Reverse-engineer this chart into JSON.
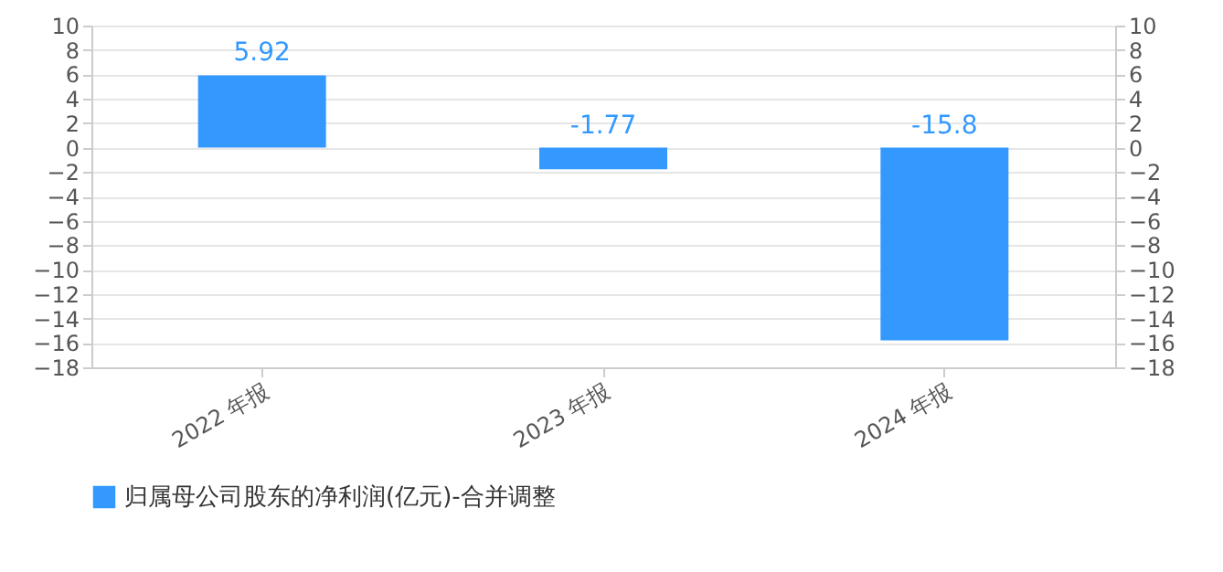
{
  "chart_data": {
    "type": "bar",
    "categories": [
      "2022 年报",
      "2023 年报",
      "2024 年报"
    ],
    "series": [
      {
        "name": "归属母公司股东的净利润(亿元)-合并调整",
        "color": "#3399ff",
        "values": [
          5.92,
          -1.77,
          -15.8
        ]
      }
    ],
    "ylim": [
      -18,
      10
    ],
    "yticks": [
      -18,
      -16,
      -14,
      -12,
      -10,
      -8,
      -6,
      -4,
      -2,
      0,
      2,
      4,
      6,
      8,
      10
    ],
    "y2lim": [
      -18,
      10
    ],
    "y2ticks": [
      -18,
      -16,
      -14,
      -12,
      -10,
      -8,
      -6,
      -4,
      -2,
      0,
      2,
      4,
      6,
      8,
      10
    ],
    "grid": "y",
    "legend": "bottom",
    "data_labels": true
  }
}
